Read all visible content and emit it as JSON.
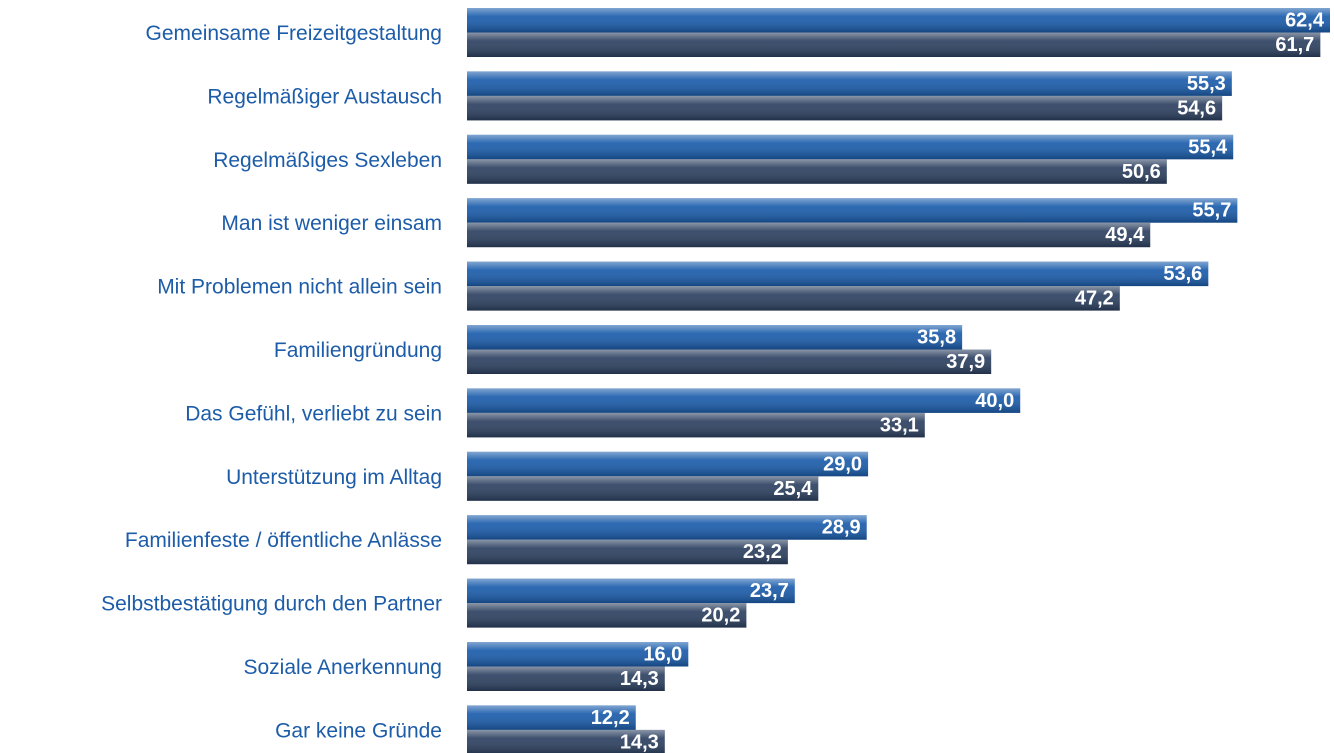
{
  "chart_data": {
    "type": "bar",
    "orientation": "horizontal",
    "categories": [
      "Gemeinsame Freizeitgestaltung",
      "Regelmäßiger Austausch",
      "Regelmäßiges Sexleben",
      "Man ist weniger einsam",
      "Mit Problemen nicht allein sein",
      "Familiengründung",
      "Das Gefühl, verliebt zu sein",
      "Unterstützung im Alltag",
      "Familienfeste / öffentliche Anlässe",
      "Selbstbestätigung durch den Partner",
      "Soziale Anerkennung",
      "Gar keine Gründe"
    ],
    "series": [
      {
        "color": "#1a5cab",
        "values": [
          62.4,
          55.3,
          55.4,
          55.7,
          53.6,
          35.8,
          40.0,
          29.0,
          28.9,
          23.7,
          16.0,
          12.2
        ],
        "value_labels": [
          "62,4",
          "55,3",
          "55,4",
          "55,7",
          "53,6",
          "35,8",
          "40,0",
          "29,0",
          "28,9",
          "23,7",
          "16,0",
          "12,2"
        ]
      },
      {
        "color": "#2c4060",
        "values": [
          61.7,
          54.6,
          50.6,
          49.4,
          47.2,
          37.9,
          33.1,
          25.4,
          23.2,
          20.2,
          14.3,
          14.3
        ],
        "value_labels": [
          "61,7",
          "54,6",
          "50,6",
          "49,4",
          "47,2",
          "37,9",
          "33,1",
          "25,4",
          "23,2",
          "20,2",
          "14,3",
          "14,3"
        ]
      }
    ]
  }
}
